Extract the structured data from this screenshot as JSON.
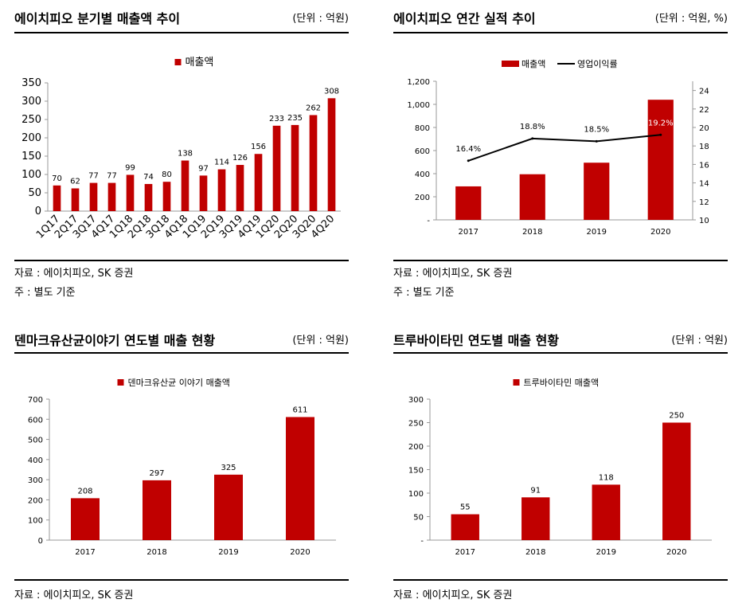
{
  "panels": [
    {
      "title": "에이치피오 분기별 매출액 추이",
      "unit": "(단위 : 억원)",
      "source": "자료 : 에이치피오, SK 증권",
      "note": "주 : 별도 기준"
    },
    {
      "title": "에이치피오 연간 실적 추이",
      "unit": "(단위 : 억원, %)",
      "source": "자료 : 에이치피오, SK 증권",
      "note": "주 : 별도 기준"
    },
    {
      "title": "덴마크유산균이야기 연도별 매출 현황",
      "unit": "(단위 : 억원)",
      "source": "자료 : 에이치피오, SK 증권",
      "note": ""
    },
    {
      "title": "트루바이타민 연도별 매출 현황",
      "unit": "(단위 : 억원)",
      "source": "자료 : 에이치피오, SK 증권",
      "note": ""
    }
  ],
  "colors": {
    "bar": "#C00000",
    "line": "#000000",
    "axis": "#999999"
  },
  "chart_data": [
    {
      "type": "bar",
      "categories": [
        "1Q17",
        "2Q17",
        "3Q17",
        "4Q17",
        "1Q18",
        "2Q18",
        "3Q18",
        "4Q18",
        "1Q19",
        "2Q19",
        "3Q19",
        "4Q19",
        "1Q20",
        "2Q20",
        "3Q20",
        "4Q20"
      ],
      "series": [
        {
          "name": "매출액",
          "values": [
            70,
            62,
            77,
            77,
            99,
            74,
            80,
            138,
            97,
            114,
            126,
            156,
            233,
            235,
            262,
            308
          ]
        }
      ],
      "ylim": [
        0,
        350
      ],
      "yticks": [
        "0",
        "50",
        "100",
        "150",
        "200",
        "250",
        "300",
        "350"
      ],
      "legend": "top-center",
      "grid": false
    },
    {
      "type": "bar",
      "categories": [
        "2017",
        "2018",
        "2019",
        "2020"
      ],
      "series": [
        {
          "name": "매출액",
          "type": "bar",
          "axis": "left",
          "values": [
            290,
            395,
            495,
            1040
          ]
        },
        {
          "name": "영업이익률",
          "type": "line",
          "axis": "right",
          "values": [
            16.4,
            18.8,
            18.5,
            19.2
          ],
          "labels": [
            "16.4%",
            "18.8%",
            "18.5%",
            "19.2%"
          ]
        }
      ],
      "ylim": [
        0,
        1200
      ],
      "yticks": [
        "-",
        "200",
        "400",
        "600",
        "800",
        "1,000",
        "1,200"
      ],
      "y2lim": [
        10,
        25
      ],
      "y2ticks": [
        "10",
        "12",
        "14",
        "16",
        "18",
        "20",
        "22",
        "24"
      ],
      "legend": "top-center",
      "grid": false
    },
    {
      "type": "bar",
      "categories": [
        "2017",
        "2018",
        "2019",
        "2020"
      ],
      "series": [
        {
          "name": "덴마크유산균 이야기 매출액",
          "values": [
            208,
            297,
            325,
            611
          ]
        }
      ],
      "ylim": [
        0,
        700
      ],
      "yticks": [
        "0",
        "100",
        "200",
        "300",
        "400",
        "500",
        "600",
        "700"
      ],
      "legend": "top-center",
      "grid": false
    },
    {
      "type": "bar",
      "categories": [
        "2017",
        "2018",
        "2019",
        "2020"
      ],
      "series": [
        {
          "name": "트루바이타민 매출액",
          "values": [
            55,
            91,
            118,
            250
          ]
        }
      ],
      "ylim": [
        0,
        300
      ],
      "yticks": [
        "-",
        "50",
        "100",
        "150",
        "200",
        "250",
        "300"
      ],
      "legend": "top-center",
      "grid": false
    }
  ]
}
